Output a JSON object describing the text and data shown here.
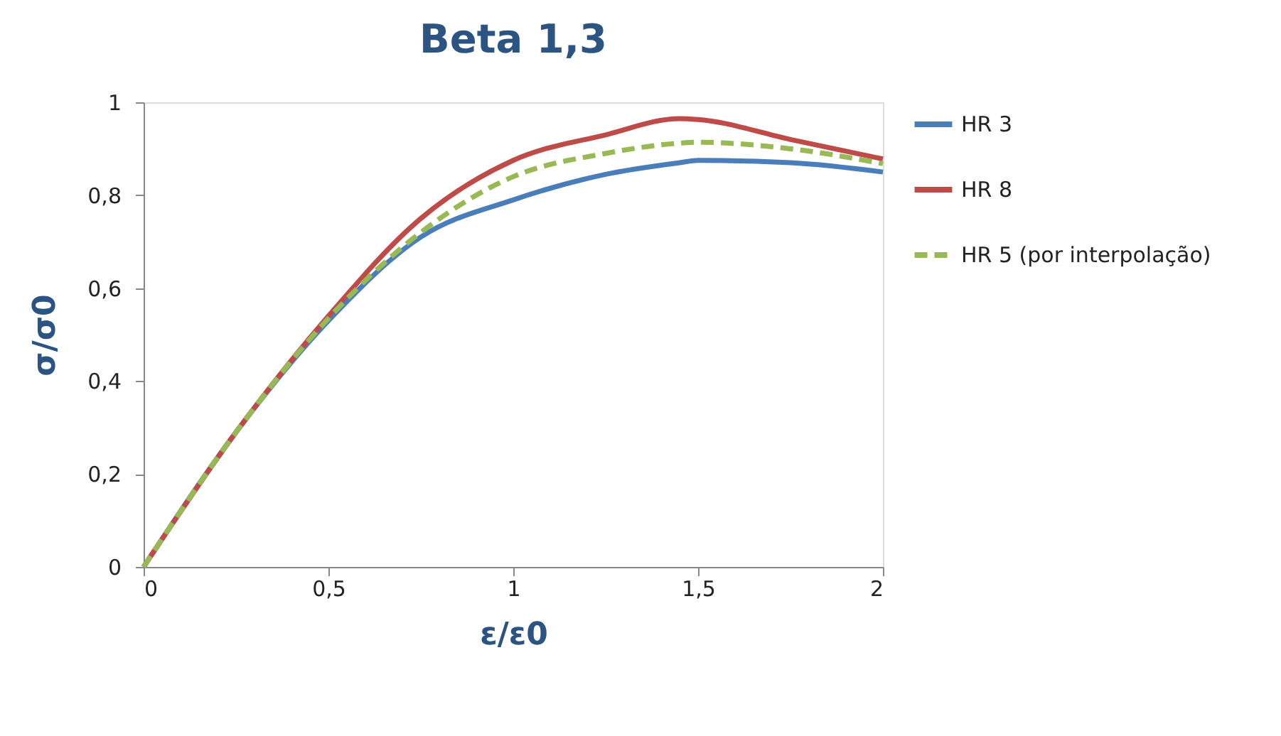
{
  "chart_data": {
    "type": "line",
    "title": "Beta 1,3",
    "xlabel": "ε/ε0",
    "ylabel": "σ/σ0",
    "x": [
      0,
      0.25,
      0.5,
      0.75,
      1,
      1.25,
      1.45,
      1.5,
      1.75,
      2
    ],
    "series": [
      {
        "name": "HR 3",
        "color": "#4a7ebb",
        "line_style": "solid",
        "values": [
          0,
          0.29,
          0.53,
          0.71,
          0.79,
          0.845,
          0.87,
          0.875,
          0.87,
          0.85
        ]
      },
      {
        "name": "HR 8",
        "color": "#be4b48",
        "line_style": "solid",
        "values": [
          0,
          0.29,
          0.54,
          0.75,
          0.875,
          0.93,
          0.965,
          0.963,
          0.92,
          0.878
        ]
      },
      {
        "name": "HR 5 (por interpolação)",
        "color": "#98b954",
        "line_style": "dashed",
        "values": [
          0,
          0.29,
          0.535,
          0.72,
          0.84,
          0.89,
          0.912,
          0.914,
          0.9,
          0.868
        ]
      }
    ],
    "xlim": [
      0,
      2
    ],
    "xticks": [
      0,
      {
        "value": 0.5,
        "label": "0,5"
      },
      1,
      {
        "value": 1.5,
        "label": "1,5"
      },
      2
    ],
    "ylim": [
      0,
      1
    ],
    "yticks": [
      0,
      {
        "value": 0.2,
        "label": "0,2"
      },
      {
        "value": 0.4,
        "label": "0,4"
      },
      {
        "value": 0.6,
        "label": "0,6"
      },
      {
        "value": 0.8,
        "label": "0,8"
      },
      1
    ],
    "grid": false,
    "legend": "right",
    "marker": "none"
  }
}
